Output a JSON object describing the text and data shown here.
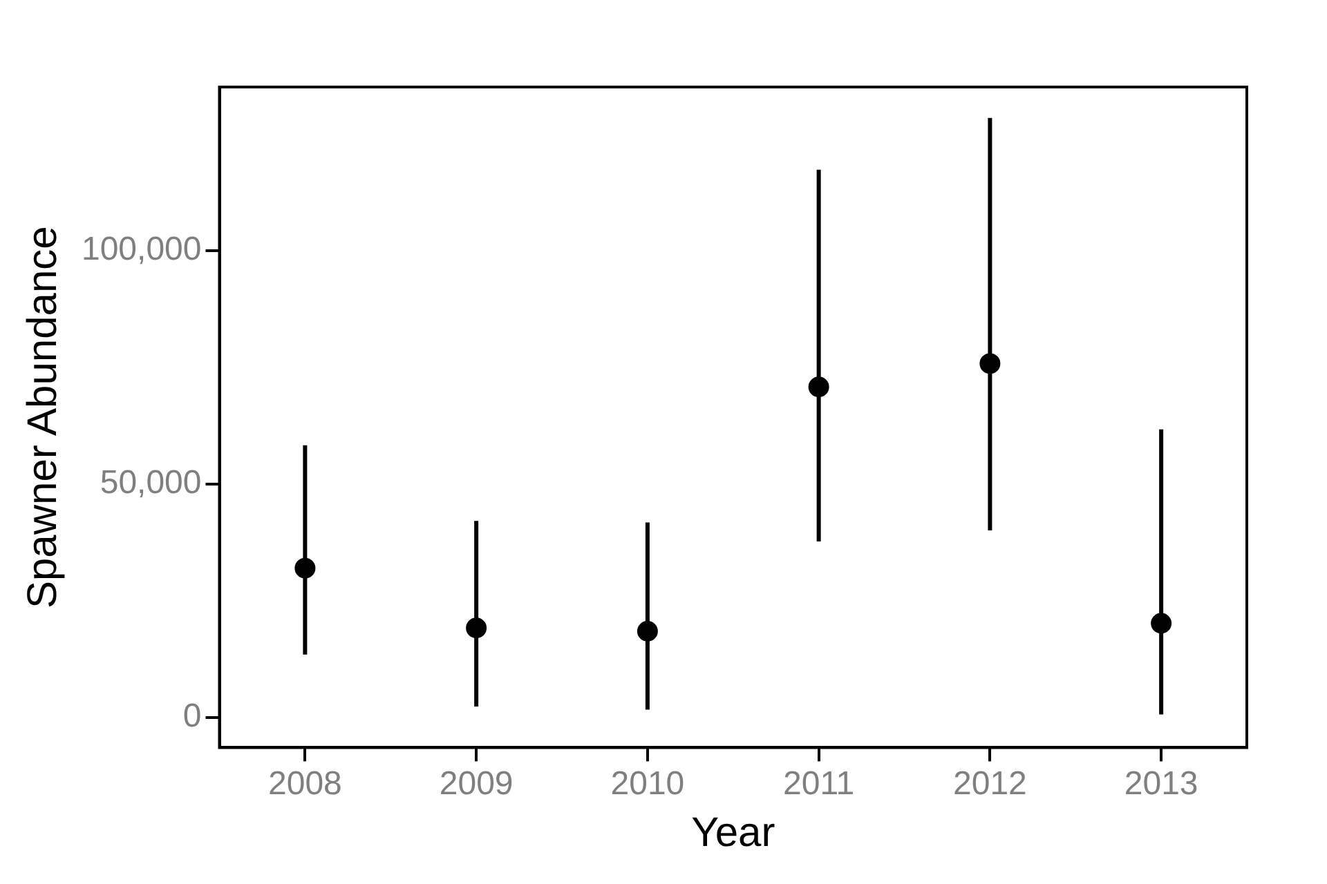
{
  "chart_data": {
    "type": "scatter",
    "xlabel": "Year",
    "ylabel": "Spawner Abundance",
    "categories": [
      "2008",
      "2009",
      "2010",
      "2011",
      "2012",
      "2013"
    ],
    "series": [
      {
        "color": "#000000",
        "values": [
          32000,
          19200,
          18500,
          70800,
          75800,
          20200
        ],
        "errors": [
          [
            13500,
            58300
          ],
          [
            2400,
            42100
          ],
          [
            1700,
            41800
          ],
          [
            37700,
            117300
          ],
          [
            40100,
            128400
          ],
          [
            700,
            61700
          ]
        ]
      }
    ],
    "ylim": [
      -6400,
      135000
    ],
    "yticks": [
      {
        "value": 0,
        "label": "0"
      },
      {
        "value": 50000,
        "label": "50,000"
      },
      {
        "value": 100000,
        "label": "100,000"
      }
    ],
    "grid": false,
    "legend": false,
    "marker": "circle"
  }
}
